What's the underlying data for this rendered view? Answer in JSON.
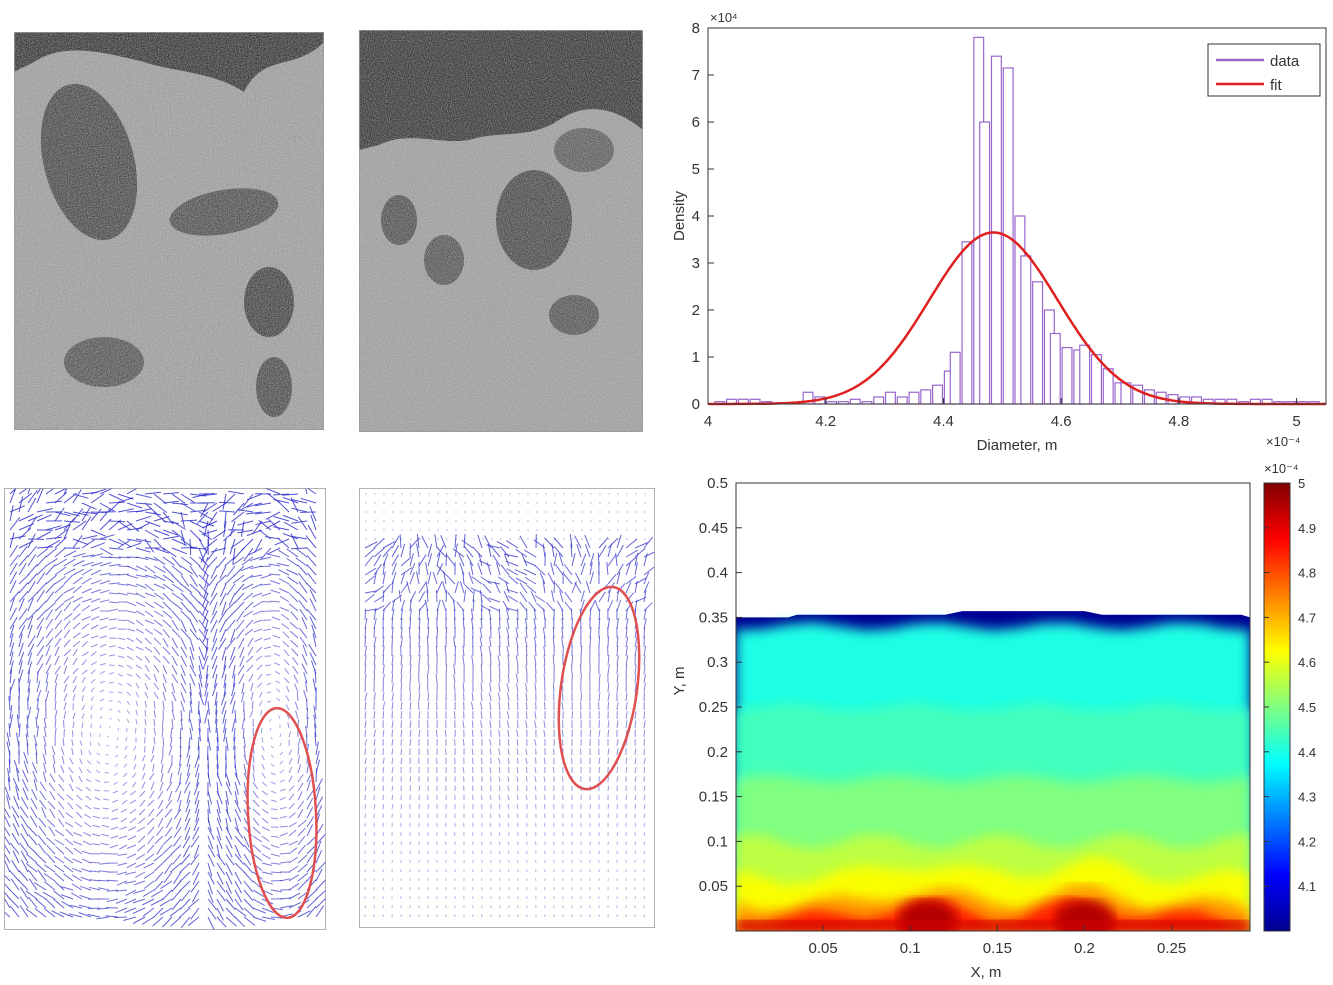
{
  "chart_data": [
    {
      "type": "bar",
      "panel": "histogram",
      "xlabel": "Diameter, m",
      "ylabel": "Density",
      "x_multiplier": "×10⁻⁴",
      "y_multiplier": "×10⁴",
      "xlim": [
        4.0,
        5.05
      ],
      "ylim": [
        0,
        8
      ],
      "x_ticks": [
        "4",
        "4.2",
        "4.4",
        "4.6",
        "4.8",
        "5"
      ],
      "y_ticks": [
        "0",
        "1",
        "2",
        "3",
        "4",
        "5",
        "6",
        "7",
        "8"
      ],
      "legend": {
        "placement": "top-right",
        "entries": [
          "data",
          "fit"
        ]
      },
      "series": [
        {
          "name": "data",
          "color": "#9966cc",
          "bin_width": 0.0167,
          "x": [
            4.02,
            4.04,
            4.06,
            4.08,
            4.1,
            4.12,
            4.14,
            4.17,
            4.19,
            4.21,
            4.23,
            4.25,
            4.27,
            4.29,
            4.31,
            4.33,
            4.35,
            4.37,
            4.39,
            4.41,
            4.42,
            4.44,
            4.46,
            4.47,
            4.49,
            4.51,
            4.53,
            4.54,
            4.56,
            4.58,
            4.59,
            4.61,
            4.63,
            4.64,
            4.66,
            4.68,
            4.7,
            4.71,
            4.73,
            4.75,
            4.77,
            4.79,
            4.81,
            4.83,
            4.85,
            4.87,
            4.89,
            4.91,
            4.93,
            4.95,
            4.97,
            4.99,
            5.01,
            5.03
          ],
          "values": [
            0.05,
            0.1,
            0.1,
            0.1,
            0.05,
            0.0,
            0.0,
            0.25,
            0.15,
            0.05,
            0.05,
            0.1,
            0.05,
            0.15,
            0.25,
            0.15,
            0.25,
            0.3,
            0.4,
            0.7,
            1.1,
            3.45,
            7.8,
            6.0,
            7.4,
            7.15,
            4.0,
            3.15,
            2.6,
            2.0,
            1.5,
            1.2,
            1.15,
            1.25,
            1.05,
            0.75,
            0.45,
            0.45,
            0.4,
            0.3,
            0.25,
            0.2,
            0.15,
            0.15,
            0.1,
            0.1,
            0.1,
            0.05,
            0.1,
            0.1,
            0.05,
            0.05,
            0.05,
            0.05
          ]
        },
        {
          "name": "fit",
          "type": "line",
          "color": "#e02020",
          "distribution": "normal",
          "mean": 4.485,
          "sd": 0.109,
          "peak": 3.65
        }
      ]
    },
    {
      "type": "heatmap",
      "panel": "contour",
      "xlabel": "X, m",
      "ylabel": "Y, m",
      "xlim": [
        0.0,
        0.295
      ],
      "ylim": [
        0.0,
        0.5
      ],
      "x_ticks": [
        "0.05",
        "0.1",
        "0.15",
        "0.2",
        "0.25"
      ],
      "y_ticks": [
        "0.05",
        "0.1",
        "0.15",
        "0.2",
        "0.25",
        "0.3",
        "0.35",
        "0.4",
        "0.45",
        "0.5"
      ],
      "colorbar": {
        "multiplier": "×10⁻⁴",
        "range": [
          4.0,
          5.0
        ],
        "ticks": [
          "4.1",
          "4.2",
          "4.3",
          "4.4",
          "4.5",
          "4.6",
          "4.7",
          "4.8",
          "4.9",
          "5"
        ],
        "colormap": "jet"
      },
      "bed_surface_y": 0.35,
      "fill_bands": [
        {
          "y_top": 0.35,
          "level": 4.02
        },
        {
          "y_top": 0.34,
          "level": 4.4
        },
        {
          "y_top": 0.25,
          "level": 4.44
        },
        {
          "y_top": 0.17,
          "level": 4.5
        },
        {
          "y_top": 0.1,
          "level": 4.56
        },
        {
          "y_top": 0.06,
          "level": 4.62
        },
        {
          "y_top": 0.03,
          "level": 4.72
        },
        {
          "y_top": 0.015,
          "level": 4.85
        }
      ]
    }
  ],
  "vector_panels": [
    {
      "name": "vector-field-left",
      "color": "#3333cc",
      "highlight_color": "#e05050"
    },
    {
      "name": "vector-field-right",
      "color": "#3333cc",
      "highlight_color": "#e05050"
    }
  ],
  "images": [
    {
      "name": "tomography-slice-left",
      "style": "grayscale-noise"
    },
    {
      "name": "tomography-slice-right",
      "style": "grayscale-noise"
    }
  ]
}
